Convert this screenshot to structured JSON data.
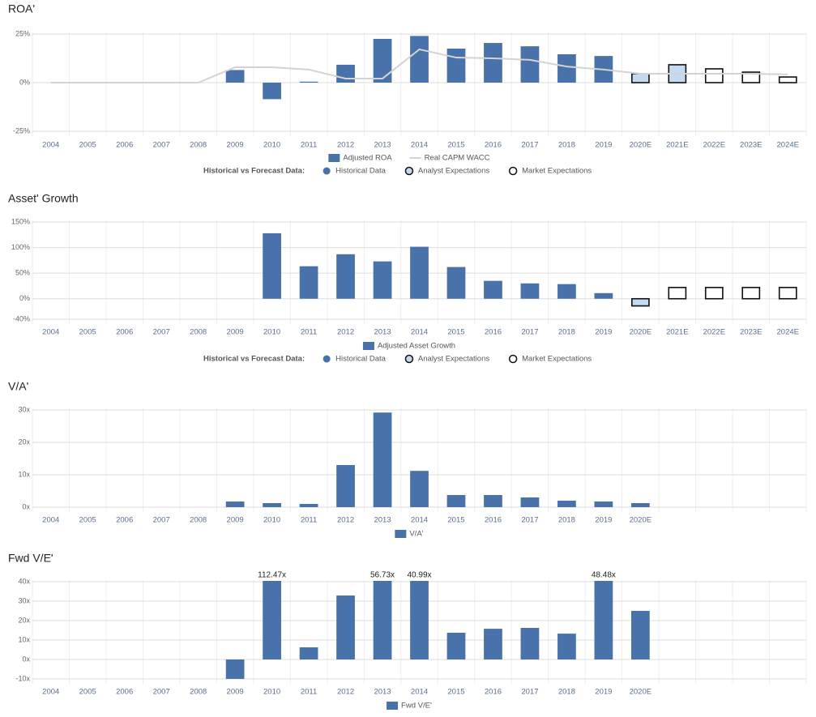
{
  "chart_data": [
    {
      "type": "bar",
      "title": "ROA'",
      "categories": [
        "2004",
        "2005",
        "2006",
        "2007",
        "2008",
        "2009",
        "2010",
        "2011",
        "2012",
        "2013",
        "2014",
        "2015",
        "2016",
        "2017",
        "2018",
        "2019",
        "2020E",
        "2021E",
        "2022E",
        "2023E",
        "2024E"
      ],
      "series": [
        {
          "name": "Adjusted ROA",
          "type": "bar",
          "color": "#4a72aa",
          "values": [
            null,
            null,
            null,
            null,
            null,
            6.5,
            -8.5,
            0.5,
            9.2,
            22.5,
            24,
            17.5,
            20.4,
            18.7,
            14.6,
            13.7,
            4.6,
            9.2,
            7.1,
            5.4,
            2.9
          ]
        },
        {
          "name": "Real CAPM WACC",
          "type": "line",
          "color": "#d3d3d3",
          "values": [
            0,
            0,
            0,
            0,
            0,
            7.9,
            7.9,
            6.7,
            2.1,
            2.1,
            17.1,
            12.9,
            12.5,
            11.7,
            8.3,
            6.7,
            4.6,
            4.6,
            4.6,
            4.6,
            4.2
          ]
        }
      ],
      "forecast_legend": {
        "title": "Historical vs Forecast Data:",
        "items": [
          {
            "name": "Historical Data",
            "color": "#4a72aa"
          },
          {
            "name": "Analyst Expectations",
            "color": "#c5d9f1"
          },
          {
            "name": "Market Expectations",
            "color": "#ffffff"
          }
        ]
      },
      "bar_kind": [
        null,
        null,
        null,
        null,
        null,
        0,
        0,
        0,
        0,
        0,
        0,
        0,
        0,
        0,
        0,
        0,
        1,
        1,
        2,
        2,
        2
      ],
      "ylim": [
        -25,
        25
      ],
      "yticks": [
        {
          "value": -25,
          "label": "-25%"
        },
        {
          "value": 0,
          "label": "0%"
        },
        {
          "value": 25,
          "label": "25%"
        }
      ],
      "grid": true
    },
    {
      "type": "bar",
      "title": "Asset' Growth",
      "categories": [
        "2004",
        "2005",
        "2006",
        "2007",
        "2008",
        "2009",
        "2010",
        "2011",
        "2012",
        "2013",
        "2014",
        "2015",
        "2016",
        "2017",
        "2018",
        "2019",
        "2020E",
        "2021E",
        "2022E",
        "2023E",
        "2024E"
      ],
      "series": [
        {
          "name": "Adjusted Asset Growth",
          "type": "bar",
          "color": "#4a72aa",
          "values": [
            null,
            null,
            null,
            null,
            null,
            null,
            128,
            63.5,
            87,
            73,
            101.6,
            62,
            35,
            30,
            28.6,
            11,
            -14,
            22,
            22,
            22,
            22
          ]
        }
      ],
      "forecast_legend": {
        "title": "Historical vs Forecast Data:",
        "items": [
          {
            "name": "Historical Data",
            "color": "#4a72aa"
          },
          {
            "name": "Analyst Expectations",
            "color": "#c5d9f1"
          },
          {
            "name": "Market Expectations",
            "color": "#ffffff"
          }
        ]
      },
      "bar_kind": [
        null,
        null,
        null,
        null,
        null,
        null,
        0,
        0,
        0,
        0,
        0,
        0,
        0,
        0,
        0,
        0,
        1,
        2,
        2,
        2,
        2
      ],
      "ylim": [
        -40,
        150
      ],
      "yticks": [
        {
          "value": -40,
          "label": "-40%"
        },
        {
          "value": 0,
          "label": "0%"
        },
        {
          "value": 50,
          "label": "50%"
        },
        {
          "value": 100,
          "label": "100%"
        },
        {
          "value": 150,
          "label": "150%"
        }
      ],
      "grid": true
    },
    {
      "type": "bar",
      "title": "V/A'",
      "categories": [
        "2004",
        "2005",
        "2006",
        "2007",
        "2008",
        "2009",
        "2010",
        "2011",
        "2012",
        "2013",
        "2014",
        "2015",
        "2016",
        "2017",
        "2018",
        "2019",
        "2020E",
        null,
        null,
        null,
        null
      ],
      "series": [
        {
          "name": "V/A'",
          "type": "bar",
          "color": "#4a72aa",
          "values": [
            null,
            null,
            null,
            null,
            null,
            1.75,
            1.25,
            1,
            13,
            29.2,
            11.2,
            3.75,
            3.75,
            3,
            2,
            1.75,
            1.25,
            null,
            null,
            null,
            null
          ]
        }
      ],
      "ylim": [
        0,
        30
      ],
      "yticks": [
        {
          "value": 0,
          "label": "0x"
        },
        {
          "value": 10,
          "label": "10x"
        },
        {
          "value": 20,
          "label": "20x"
        },
        {
          "value": 30,
          "label": "30x"
        }
      ],
      "grid": true
    },
    {
      "type": "bar",
      "title": "Fwd V/E'",
      "categories": [
        "2004",
        "2005",
        "2006",
        "2007",
        "2008",
        "2009",
        "2010",
        "2011",
        "2012",
        "2013",
        "2014",
        "2015",
        "2016",
        "2017",
        "2018",
        "2019",
        "2020E",
        null,
        null,
        null,
        null
      ],
      "series": [
        {
          "name": "Fwd V/E'",
          "type": "bar",
          "color": "#4a72aa",
          "values": [
            null,
            null,
            null,
            null,
            null,
            -10,
            112.47,
            6.25,
            32.9,
            56.73,
            40.99,
            13.75,
            15.8,
            16.25,
            13.3,
            48.48,
            25,
            null,
            null,
            null,
            null
          ],
          "value_labels": [
            null,
            null,
            null,
            null,
            null,
            null,
            "112.47x",
            null,
            null,
            "56.73x",
            "40.99x",
            null,
            null,
            null,
            null,
            "48.48x",
            null,
            null,
            null,
            null,
            null
          ]
        }
      ],
      "ylim": [
        -10,
        40
      ],
      "yticks": [
        {
          "value": -10,
          "label": "-10x"
        },
        {
          "value": 0,
          "label": "0x"
        },
        {
          "value": 10,
          "label": "10x"
        },
        {
          "value": 20,
          "label": "20x"
        },
        {
          "value": 30,
          "label": "30x"
        },
        {
          "value": 40,
          "label": "40x"
        }
      ],
      "grid": true
    }
  ]
}
